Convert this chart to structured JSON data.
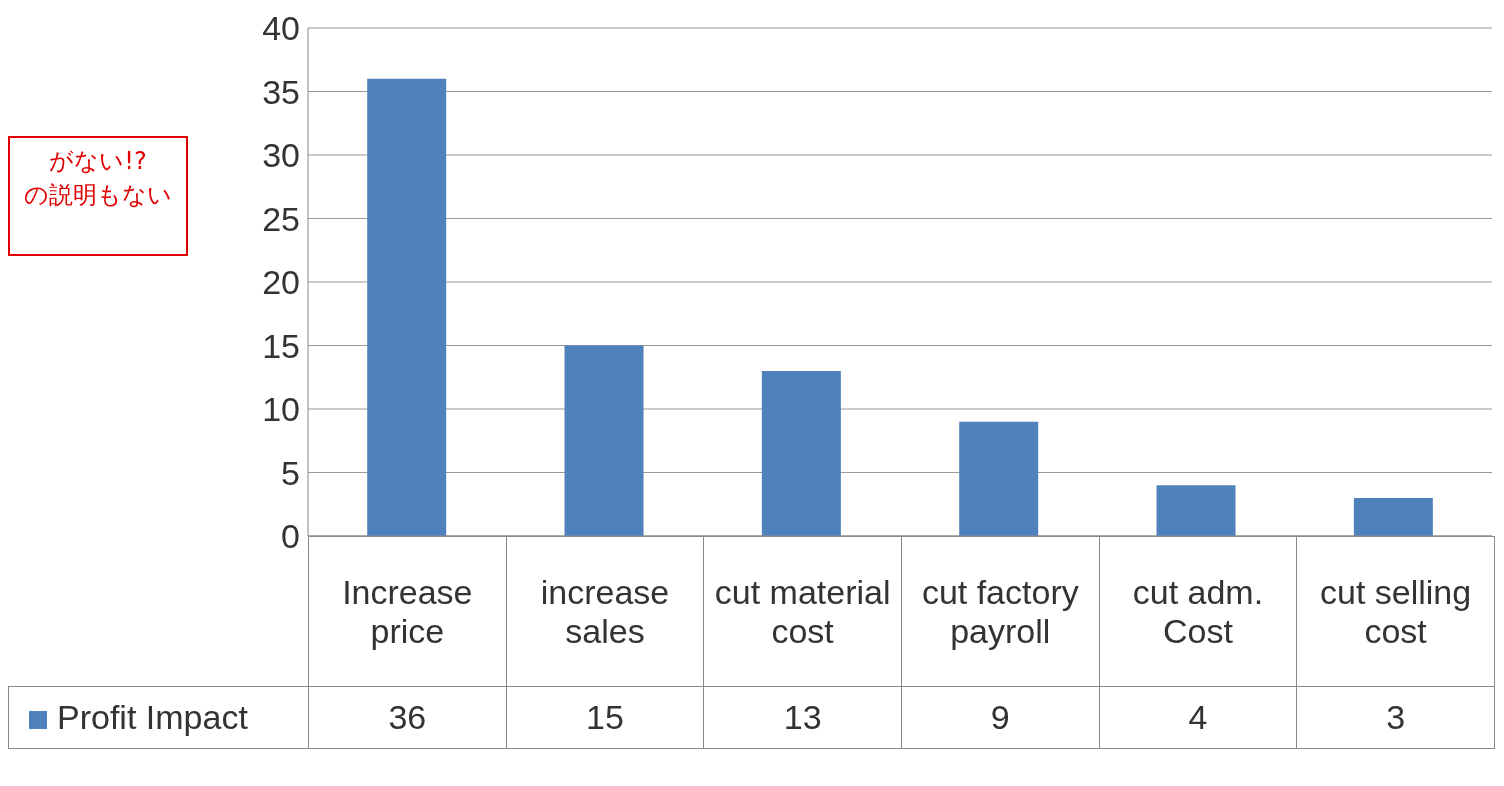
{
  "chart_data": {
    "type": "bar",
    "categories": [
      "Increase price",
      "increase sales",
      "cut material cost",
      "cut factory payroll",
      "cut adm. Cost",
      "cut selling cost"
    ],
    "series": [
      {
        "name": "Profit Impact",
        "color": "#4f81bd",
        "values": [
          36,
          15,
          13,
          9,
          4,
          3
        ]
      }
    ],
    "ylim": [
      0,
      40
    ],
    "yticks": [
      0,
      5,
      10,
      15,
      20,
      25,
      30,
      35,
      40
    ],
    "grid": "y",
    "legend": "bottom",
    "data_labels": true,
    "annotations": [
      "がない!?",
      "の説明もない"
    ]
  }
}
